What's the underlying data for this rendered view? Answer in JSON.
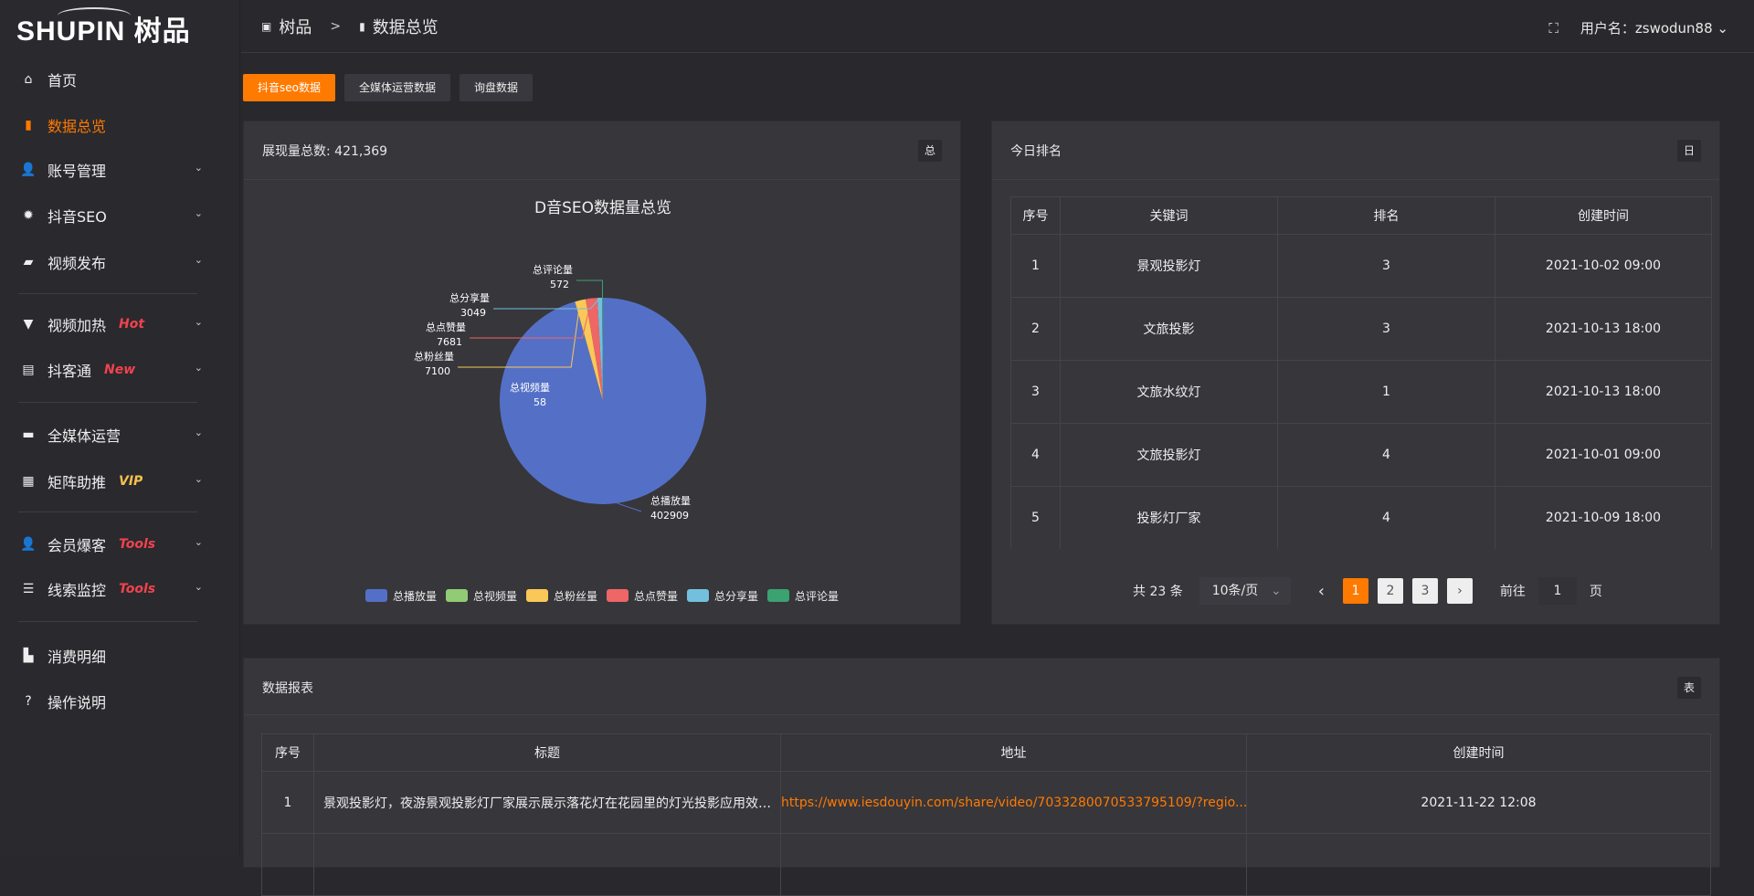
{
  "app": {
    "logo": "SHUPIN 树品"
  },
  "sidebar": {
    "items": [
      {
        "label": "首页",
        "icon": "home-icon"
      },
      {
        "label": "数据总览",
        "icon": "bar-chart-icon"
      },
      {
        "label": "账号管理",
        "icon": "user-icon"
      },
      {
        "label": "抖音SEO",
        "icon": "gear-icon"
      },
      {
        "label": "视频发布",
        "icon": "camera-icon"
      },
      {
        "label": "视频加热",
        "icon": "sign-icon",
        "badge": "Hot"
      },
      {
        "label": "抖客通",
        "icon": "chat-icon",
        "badge": "New"
      },
      {
        "label": "全媒体运营",
        "icon": "monitor-icon"
      },
      {
        "label": "矩阵助推",
        "icon": "grid-icon",
        "badge": "VIP"
      },
      {
        "label": "会员爆客",
        "icon": "user-icon",
        "badge": "Tools"
      },
      {
        "label": "线索监控",
        "icon": "sliders-icon",
        "badge": "Tools"
      },
      {
        "label": "消费明细",
        "icon": "wallet-icon"
      },
      {
        "label": "操作说明",
        "icon": "question-icon"
      }
    ]
  },
  "header": {
    "crumb1": "树品",
    "crumb_sep": ">",
    "crumb2": "数据总览",
    "fullscreen_icon": "⛶",
    "user_label": "用户名：zswodun88"
  },
  "tabs": [
    "抖音seo数据",
    "全媒体运营数据",
    "询盘数据"
  ],
  "colors": {
    "accent": "#ff7a00",
    "hot": "#f0434d",
    "vip": "#f5c04a"
  },
  "pie_panel": {
    "title": "展现量总数: 421,369",
    "button": "总"
  },
  "chart_data": {
    "type": "pie",
    "title": "D音SEO数据量总览",
    "legend_position": "bottom",
    "slices": [
      {
        "name": "总播放量",
        "value": 402909,
        "color": "#5470c6"
      },
      {
        "name": "总视频量",
        "value": 58,
        "color": "#91cc75"
      },
      {
        "name": "总粉丝量",
        "value": 7100,
        "color": "#fac858"
      },
      {
        "name": "总点赞量",
        "value": 7681,
        "color": "#ee6666"
      },
      {
        "name": "总分享量",
        "value": 3049,
        "color": "#73c0de"
      },
      {
        "name": "总评论量",
        "value": 572,
        "color": "#3ba272"
      }
    ]
  },
  "ranking": {
    "title": "今日排名",
    "button": "日",
    "columns": [
      "序号",
      "关键词",
      "排名",
      "创建时间"
    ],
    "rows": [
      [
        "1",
        "景观投影灯",
        "3",
        "2021-10-02 09:00"
      ],
      [
        "2",
        "文旅投影",
        "3",
        "2021-10-13 18:00"
      ],
      [
        "3",
        "文旅水纹灯",
        "1",
        "2021-10-13 18:00"
      ],
      [
        "4",
        "文旅投影灯",
        "4",
        "2021-10-01 09:00"
      ],
      [
        "5",
        "投影灯厂家",
        "4",
        "2021-10-09 18:00"
      ]
    ],
    "pager": {
      "total": "共 23 条",
      "size": "10条/页",
      "pages": [
        "1",
        "2",
        "3"
      ],
      "current": "1",
      "goto_label": "前往",
      "goto_value": "1",
      "page_suffix": "页",
      "prev": "‹",
      "next": "›"
    }
  },
  "report": {
    "title": "数据报表",
    "button": "表",
    "columns": [
      "序号",
      "标题",
      "地址",
      "创建时间"
    ],
    "rows": [
      [
        "1",
        "景观投影灯，夜游景观投影灯厂家展示展示落花灯在花园里的灯光投影应用效果 #",
        "https://www.iesdouyin.com/share/video/7033280070533795109/?regio...",
        "2021-11-22 12:08"
      ]
    ]
  }
}
